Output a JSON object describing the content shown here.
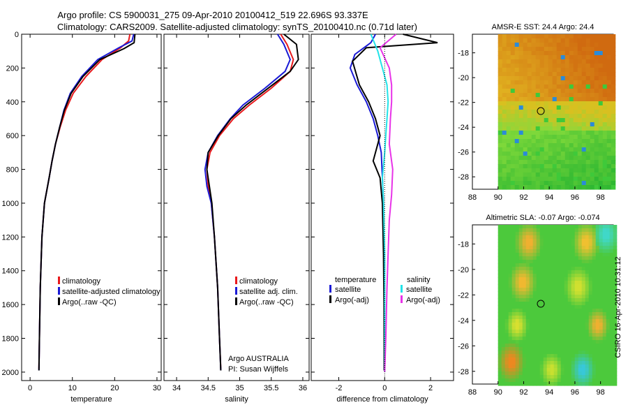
{
  "titles": {
    "line1": "Argo profile: CS 5900031_275 09-Apr-2010 20100412_519 22.696S 93.337E",
    "line2": "Climatology: CARS2009. Satellite-adjusted climatology: synTS_20100410.nc (0.71d later)"
  },
  "colors": {
    "red": "#e8191c",
    "blue": "#1a1ad6",
    "black": "#000000",
    "cyan": "#22e3e8",
    "magenta": "#e833e8"
  },
  "chart_data": [
    {
      "id": "temperature",
      "type": "line",
      "xlabel": "temperature",
      "ylabel": "",
      "xlim": [
        -2,
        31
      ],
      "ylim": [
        2050,
        0
      ],
      "xticks": [
        0,
        10,
        20,
        30
      ],
      "yticks": [
        0,
        200,
        400,
        600,
        800,
        1000,
        1200,
        1400,
        1600,
        1800,
        2000
      ],
      "series": [
        {
          "name": "climatology",
          "color": "#e8191c",
          "x": [
            23.6,
            23.3,
            21.4,
            17.0,
            13.2,
            10.2,
            8.4,
            7.1,
            6.0,
            5.2,
            4.5,
            3.4,
            2.8,
            2.4,
            2.2,
            2.1
          ],
          "y": [
            0,
            40,
            80,
            150,
            250,
            350,
            450,
            550,
            650,
            750,
            850,
            1000,
            1200,
            1500,
            1800,
            1980
          ]
        },
        {
          "name": "satellite-adjusted climatology",
          "color": "#1a1ad6",
          "x": [
            24.5,
            24.1,
            21.0,
            16.0,
            12.2,
            9.5,
            8.0,
            7.0,
            6.0,
            5.2,
            4.5,
            3.4,
            2.8,
            2.4,
            2.2,
            2.1
          ],
          "y": [
            0,
            40,
            80,
            150,
            250,
            350,
            450,
            550,
            650,
            750,
            850,
            1000,
            1200,
            1500,
            1800,
            1990
          ]
        },
        {
          "name": "Argo(..raw -QC)",
          "color": "#000000",
          "x": [
            24.8,
            24.6,
            22.2,
            16.5,
            12.5,
            9.7,
            8.1,
            7.0,
            6.0,
            5.2,
            4.5,
            3.4,
            2.8,
            2.4,
            2.2,
            2.1
          ],
          "y": [
            0,
            50,
            85,
            150,
            250,
            350,
            450,
            550,
            650,
            750,
            850,
            1000,
            1200,
            1500,
            1800,
            1990
          ]
        }
      ],
      "legend": [
        "climatology",
        "satellite-adjusted climatology",
        "Argo(..raw -QC)"
      ]
    },
    {
      "id": "salinity",
      "type": "line",
      "xlabel": "salinity",
      "ylabel": "",
      "xlim": [
        33.8,
        36.1
      ],
      "ylim": [
        2050,
        0
      ],
      "xticks": [
        34,
        34.5,
        35,
        35.5,
        36
      ],
      "series": [
        {
          "name": "climatology",
          "color": "#e8191c",
          "x": [
            35.65,
            35.75,
            35.85,
            35.8,
            35.5,
            35.15,
            34.9,
            34.68,
            34.53,
            34.48,
            34.5,
            34.55,
            34.6,
            34.65,
            34.68,
            34.7
          ],
          "y": [
            0,
            60,
            150,
            220,
            320,
            420,
            500,
            600,
            700,
            800,
            900,
            1000,
            1200,
            1500,
            1800,
            1980
          ]
        },
        {
          "name": "satellite adj. clim.",
          "color": "#1a1ad6",
          "x": [
            35.6,
            35.7,
            35.8,
            35.72,
            35.4,
            35.05,
            34.85,
            34.65,
            34.5,
            34.45,
            34.48,
            34.55,
            34.6,
            34.65,
            34.68,
            34.7
          ],
          "y": [
            0,
            60,
            150,
            220,
            320,
            420,
            500,
            600,
            700,
            800,
            900,
            1000,
            1200,
            1500,
            1800,
            1990
          ]
        },
        {
          "name": "Argo(..raw -QC)",
          "color": "#000000",
          "x": [
            35.7,
            35.9,
            35.93,
            35.8,
            35.45,
            35.1,
            34.86,
            34.66,
            34.5,
            34.48,
            34.52,
            34.56,
            34.6,
            34.65,
            34.68,
            34.7
          ],
          "y": [
            0,
            60,
            150,
            220,
            320,
            420,
            500,
            600,
            700,
            800,
            900,
            1000,
            1200,
            1500,
            1800,
            1990
          ]
        }
      ],
      "legend": [
        "climatology",
        "satellite adj. clim.",
        "Argo(..raw -QC)"
      ],
      "annotation": [
        "Argo AUSTRALIA",
        "PI: Susan Wijffels"
      ]
    },
    {
      "id": "difference",
      "type": "line",
      "xlabel": "difference from climatology",
      "ylabel": "",
      "xlim": [
        -3.2,
        3.0
      ],
      "ylim": [
        2050,
        0
      ],
      "xticks": [
        -2,
        0,
        2
      ],
      "series": [
        {
          "name": "temperature satellite",
          "color": "#1a1ad6",
          "x": [
            -0.4,
            -0.6,
            -1.3,
            -1.5,
            -1.2,
            -0.8,
            -0.5,
            -0.3,
            -0.15,
            -0.1,
            -0.05,
            -0.03,
            -0.02,
            -0.02
          ],
          "y": [
            0,
            50,
            120,
            200,
            300,
            400,
            500,
            600,
            700,
            850,
            1000,
            1300,
            1600,
            1990
          ]
        },
        {
          "name": "temperature Argo(-adj)",
          "color": "#000000",
          "x": [
            0.8,
            2.3,
            -0.8,
            -1.4,
            -1.1,
            -0.7,
            -0.4,
            -0.2,
            -0.5,
            -0.2,
            -0.1,
            -0.05,
            -0.03,
            -0.02
          ],
          "y": [
            0,
            50,
            80,
            160,
            300,
            400,
            500,
            600,
            750,
            850,
            1000,
            1300,
            1600,
            1990
          ]
        },
        {
          "name": "salinity satellite",
          "color": "#22e3e8",
          "x": [
            -0.6,
            -0.3,
            -0.1,
            0.1,
            0.15,
            0.1,
            0.05,
            0.0,
            -0.1,
            -0.05,
            0.0,
            0.0,
            0.0,
            0.0
          ],
          "y": [
            0,
            100,
            200,
            300,
            400,
            500,
            600,
            700,
            850,
            1000,
            1300,
            1600,
            1800,
            2000
          ]
        },
        {
          "name": "salinity Argo(-adj)",
          "color": "#e833e8",
          "x": [
            0.5,
            -0.2,
            0.2,
            0.3,
            0.3,
            0.25,
            0.2,
            0.35,
            0.3,
            0.2,
            0.15,
            0.1,
            0.05,
            0.0
          ],
          "y": [
            0,
            80,
            200,
            300,
            400,
            500,
            650,
            800,
            950,
            1100,
            1300,
            1500,
            1800,
            2000
          ]
        }
      ],
      "legend": {
        "temperature_label": "temperature",
        "salinity_label": "salinity",
        "temperature": [
          "satellite",
          "Argo(-adj)"
        ],
        "salinity": [
          "satellite",
          "Argo(-adj)"
        ]
      }
    },
    {
      "id": "sst_map",
      "type": "heatmap",
      "title": "AMSR-E SST: 24.4  Argo: 24.4",
      "xlim": [
        88,
        99
      ],
      "ylim": [
        -29,
        -16.5
      ],
      "xticks": [
        88,
        90,
        92,
        94,
        96,
        98
      ],
      "yticks": [
        -18,
        -20,
        -22,
        -24,
        -26,
        -28
      ],
      "float_position": {
        "lon": 93.337,
        "lat": -22.696
      }
    },
    {
      "id": "sla_map",
      "type": "heatmap",
      "title": "Altimetric SLA: -0.07  Argo: -0.074",
      "xlim": [
        88,
        99
      ],
      "ylim": [
        -29,
        -16.5
      ],
      "xticks": [
        88,
        90,
        92,
        94,
        96,
        98
      ],
      "yticks": [
        -18,
        -20,
        -22,
        -24,
        -26,
        -28
      ],
      "float_position": {
        "lon": 93.337,
        "lat": -22.696
      }
    }
  ],
  "footer_stamp": "CSIRO 16-Apr-2010 10:31:12"
}
